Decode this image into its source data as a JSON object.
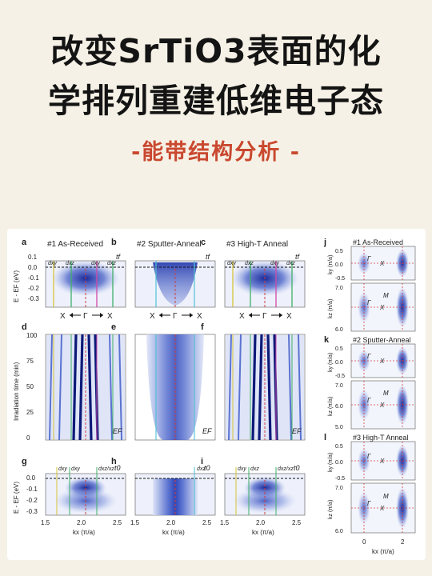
{
  "header": {
    "title_line1": "改变SrTiO3表面的化",
    "title_line2": "学排列重建低维电子态",
    "subtitle": "-能带结构分析 -"
  },
  "figure": {
    "panels": [
      {
        "label": "a",
        "title": "#1 As-Received",
        "corner": "tf"
      },
      {
        "label": "b",
        "title": "#2 Sputter-Anneal",
        "corner": "tf"
      },
      {
        "label": "c",
        "title": "#3 High-T Anneal",
        "corner": "tf"
      },
      {
        "label": "d",
        "corner": "EF"
      },
      {
        "label": "e",
        "corner": "EF"
      },
      {
        "label": "f",
        "corner": "EF"
      },
      {
        "label": "g",
        "corner": "t0"
      },
      {
        "label": "h",
        "corner": "t0"
      },
      {
        "label": "i",
        "corner": "t0"
      }
    ],
    "band_labels": {
      "a": [
        "dxy",
        "dxz",
        "dxy",
        "dxz"
      ],
      "b": [],
      "c": [
        "dxy",
        "dxz",
        "dxy",
        "dxz"
      ],
      "g": [
        "dxy",
        "dxy",
        "dxz/xz"
      ],
      "h": [
        "dxz"
      ],
      "i": [
        "dxy",
        "dxz",
        "dxz/xz"
      ]
    },
    "arrow_labels": [
      "X",
      "Γ",
      "X"
    ],
    "axis": {
      "energy_label": "E - EF (eV)",
      "energy_ticks": [
        "0.0",
        "-0.1",
        "-0.2",
        "-0.3"
      ],
      "energy_ticks_top": [
        "0.1",
        "0.0",
        "-0.1",
        "-0.2",
        "-0.3"
      ],
      "time_label": "Irradiation time (min)",
      "time_ticks": [
        "100",
        "75",
        "50",
        "25",
        "0"
      ],
      "kx_ticks": [
        "1.5",
        "2.0",
        "2.5"
      ],
      "kx_label": "kx (π/a)"
    },
    "right_panels": [
      {
        "label": "j",
        "title": "#1 As-Received"
      },
      {
        "label": "k",
        "title": "#2 Sputter-Anneal"
      },
      {
        "label": "l",
        "title": "#3 High-T Anneal"
      }
    ],
    "right_axis": {
      "ky_label": "ky (π/a)",
      "kz_label": "kz (π/a)",
      "ky_ticks": [
        "0.5",
        "0.0",
        "-0.5"
      ],
      "kz_ticks_j": [
        "7.0",
        "6.0"
      ],
      "kz_ticks_k": [
        "7.0",
        "6.0",
        "5.0"
      ],
      "kz_ticks_l": [
        "7.0",
        "6.0"
      ],
      "kx_ticks": [
        "0",
        "2"
      ],
      "kx_label": "kx (π/a)",
      "marks": [
        "Γ",
        "X",
        "M"
      ]
    }
  }
}
